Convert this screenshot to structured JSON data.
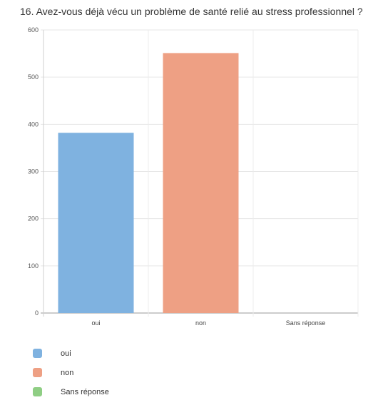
{
  "chart_data": {
    "type": "bar",
    "title": "16. Avez-vous déjà vécu un problème de santé relié au stress professionnel ?",
    "categories": [
      "oui",
      "non",
      "Sans réponse"
    ],
    "values": [
      382,
      551,
      0
    ],
    "colors": [
      "#7fb2e0",
      "#eea084",
      "#8fce84"
    ],
    "ylim": [
      0,
      600
    ],
    "yticks": [
      0,
      100,
      200,
      300,
      400,
      500,
      600
    ],
    "grid": true,
    "legend": {
      "position": "bottom-left",
      "items": [
        {
          "label": "oui",
          "color": "#7fb2e0"
        },
        {
          "label": "non",
          "color": "#eea084"
        },
        {
          "label": "Sans réponse",
          "color": "#8fce84"
        }
      ]
    }
  }
}
